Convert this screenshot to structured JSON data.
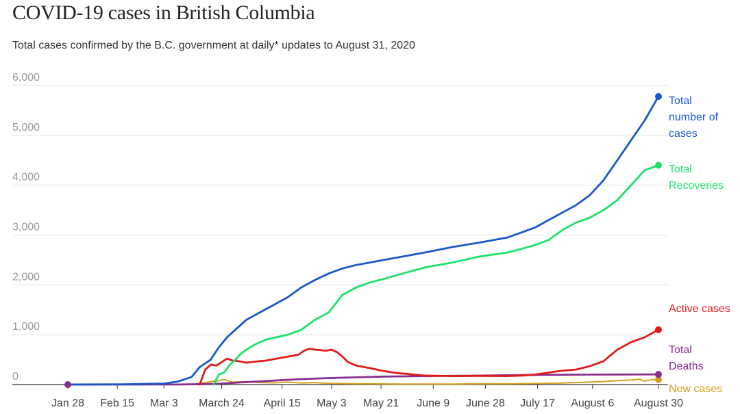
{
  "chart_data": {
    "type": "line",
    "title": "COVID-19 cases in British Columbia",
    "subtitle": "Total cases confirmed by the B.C. government at daily* updates to August 31, 2020",
    "xlabel": "",
    "ylabel": "",
    "ylim": [
      0,
      6000
    ],
    "yticks": [
      0,
      1000,
      2000,
      3000,
      4000,
      5000,
      6000
    ],
    "ytick_labels": [
      "0",
      "1,000",
      "2,000",
      "3,000",
      "4,000",
      "5,000",
      "6,000"
    ],
    "x_tick_labels": [
      "Jan 28",
      "Feb 15",
      "Mar 3",
      "March 24",
      "April 15",
      "May 3",
      "May 21",
      "June 9",
      "June 28",
      "July 17",
      "August 6",
      "August 30"
    ],
    "x_tick_days": [
      0,
      18,
      35,
      56,
      78,
      96,
      114,
      133,
      152,
      171,
      191,
      215
    ],
    "x_range_days": [
      0,
      216
    ],
    "series": [
      {
        "name": "Total number of cases",
        "label": [
          "Total",
          "number of",
          "cases"
        ],
        "color": "#1a57c9",
        "x": [
          0,
          20,
          35,
          40,
          45,
          48,
          52,
          55,
          58,
          62,
          65,
          70,
          75,
          80,
          85,
          90,
          95,
          100,
          105,
          110,
          115,
          120,
          130,
          140,
          150,
          160,
          165,
          170,
          175,
          180,
          185,
          190,
          195,
          200,
          205,
          210,
          215
        ],
        "y": [
          1,
          5,
          20,
          60,
          150,
          350,
          500,
          750,
          950,
          1150,
          1300,
          1450,
          1600,
          1750,
          1950,
          2100,
          2230,
          2330,
          2400,
          2450,
          2500,
          2550,
          2650,
          2760,
          2850,
          2950,
          3050,
          3150,
          3300,
          3450,
          3600,
          3800,
          4100,
          4500,
          4900,
          5300,
          5780
        ]
      },
      {
        "name": "Total Recoveries",
        "label": [
          "Total",
          "Recoveries"
        ],
        "color": "#1ee06a",
        "x": [
          53,
          55,
          57,
          59,
          61,
          63,
          65,
          68,
          72,
          76,
          80,
          85,
          90,
          95,
          100,
          105,
          110,
          115,
          120,
          130,
          140,
          150,
          160,
          165,
          170,
          175,
          180,
          185,
          190,
          195,
          200,
          205,
          210,
          215
        ],
        "y": [
          0,
          200,
          250,
          400,
          500,
          620,
          700,
          800,
          900,
          950,
          1000,
          1100,
          1300,
          1450,
          1800,
          1950,
          2050,
          2120,
          2200,
          2350,
          2450,
          2570,
          2650,
          2720,
          2800,
          2900,
          3100,
          3250,
          3350,
          3500,
          3700,
          4000,
          4300,
          4400
        ]
      },
      {
        "name": "Active cases",
        "label": [
          "Active cases"
        ],
        "color": "#e01a1a",
        "x": [
          48,
          50,
          52,
          54,
          56,
          58,
          60,
          62,
          65,
          68,
          72,
          76,
          80,
          84,
          86,
          88,
          90,
          92,
          94,
          96,
          98,
          100,
          102,
          105,
          110,
          115,
          120,
          130,
          140,
          150,
          160,
          165,
          170,
          175,
          180,
          185,
          190,
          195,
          200,
          205,
          210,
          215
        ],
        "y": [
          0,
          300,
          400,
          380,
          450,
          520,
          480,
          470,
          440,
          460,
          480,
          520,
          560,
          600,
          680,
          720,
          700,
          690,
          680,
          700,
          650,
          560,
          450,
          380,
          330,
          270,
          230,
          180,
          170,
          175,
          170,
          180,
          200,
          240,
          280,
          300,
          370,
          470,
          700,
          850,
          950,
          1100
        ]
      },
      {
        "name": "Total Deaths",
        "label": [
          "Total",
          "Deaths"
        ],
        "color": "#8a2d8c",
        "x": [
          0,
          40,
          50,
          56,
          65,
          75,
          85,
          95,
          105,
          115,
          130,
          150,
          170,
          190,
          215
        ],
        "y": [
          0,
          2,
          10,
          20,
          50,
          80,
          110,
          130,
          145,
          160,
          170,
          180,
          195,
          200,
          205
        ]
      },
      {
        "name": "New cases",
        "label": [
          "New cases"
        ],
        "color": "#d4a020",
        "x": [
          45,
          50,
          52,
          55,
          57,
          60,
          65,
          70,
          75,
          80,
          85,
          90,
          95,
          100,
          105,
          110,
          120,
          130,
          140,
          150,
          160,
          170,
          180,
          190,
          195,
          200,
          205,
          208,
          210,
          213,
          215
        ],
        "y": [
          0,
          40,
          60,
          80,
          100,
          50,
          60,
          40,
          35,
          50,
          30,
          40,
          25,
          20,
          15,
          15,
          10,
          10,
          10,
          15,
          15,
          20,
          30,
          50,
          60,
          80,
          90,
          110,
          70,
          100,
          100
        ]
      }
    ]
  }
}
